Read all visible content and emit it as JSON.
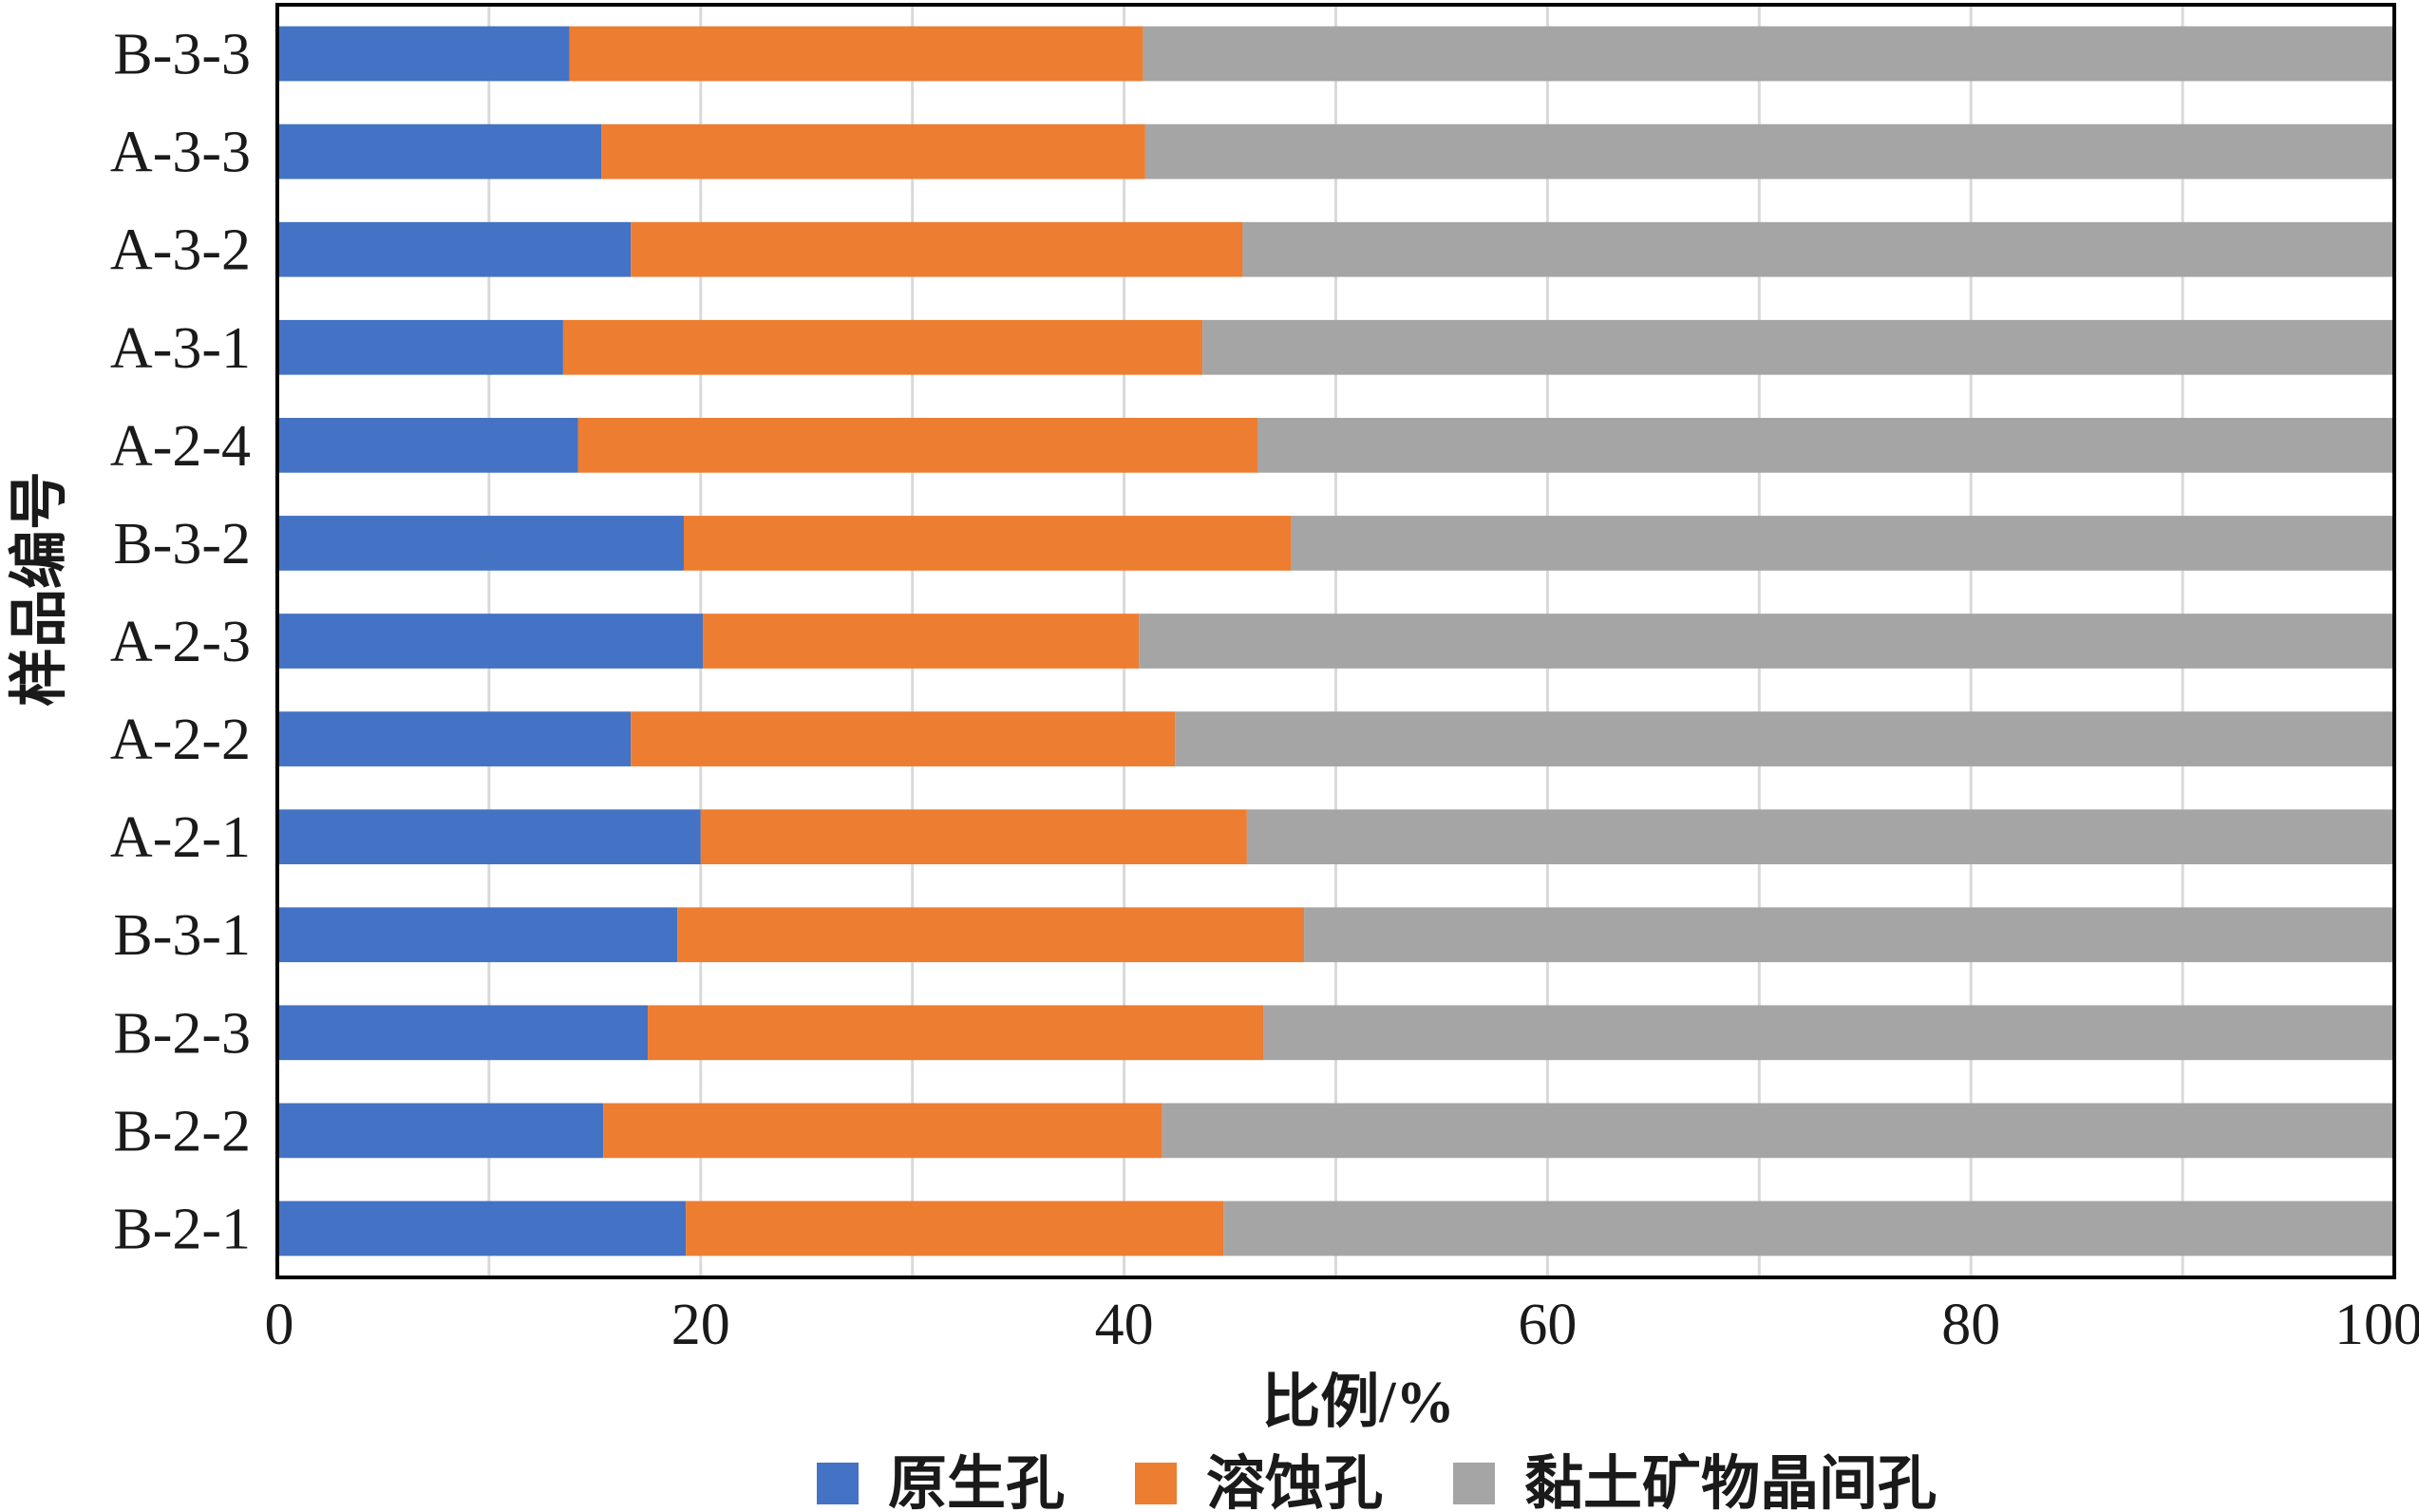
{
  "chart_data": {
    "type": "bar",
    "orientation": "horizontal",
    "stacked": true,
    "categories": [
      "B-3-3",
      "A-3-3",
      "A-3-2",
      "A-3-1",
      "A-2-4",
      "B-3-2",
      "A-2-3",
      "A-2-2",
      "A-2-1",
      "B-3-1",
      "B-2-3",
      "B-2-2",
      "B-2-1"
    ],
    "series": [
      {
        "name": "原生孔",
        "color": "#4472C4",
        "values": [
          13.8,
          15.3,
          16.7,
          13.5,
          14.2,
          19.2,
          20.1,
          16.7,
          20.0,
          18.9,
          17.5,
          15.4,
          19.3
        ]
      },
      {
        "name": "溶蚀孔",
        "color": "#ED7D31",
        "values": [
          27.1,
          25.7,
          28.9,
          30.2,
          32.1,
          28.7,
          20.6,
          25.7,
          25.8,
          29.6,
          29.1,
          26.4,
          25.4
        ]
      },
      {
        "name": "黏土矿物晶间孔",
        "color": "#A5A5A5",
        "values": [
          59.1,
          59.0,
          54.4,
          56.3,
          53.7,
          52.1,
          59.3,
          57.6,
          54.2,
          51.5,
          53.4,
          58.2,
          55.3
        ]
      }
    ],
    "xlabel": "比例/%",
    "ylabel": "样品编号",
    "xlim": [
      0,
      100
    ],
    "xticks": [
      0,
      20,
      40,
      60,
      80,
      100
    ],
    "grid": "vertical",
    "legend": "bottom"
  }
}
